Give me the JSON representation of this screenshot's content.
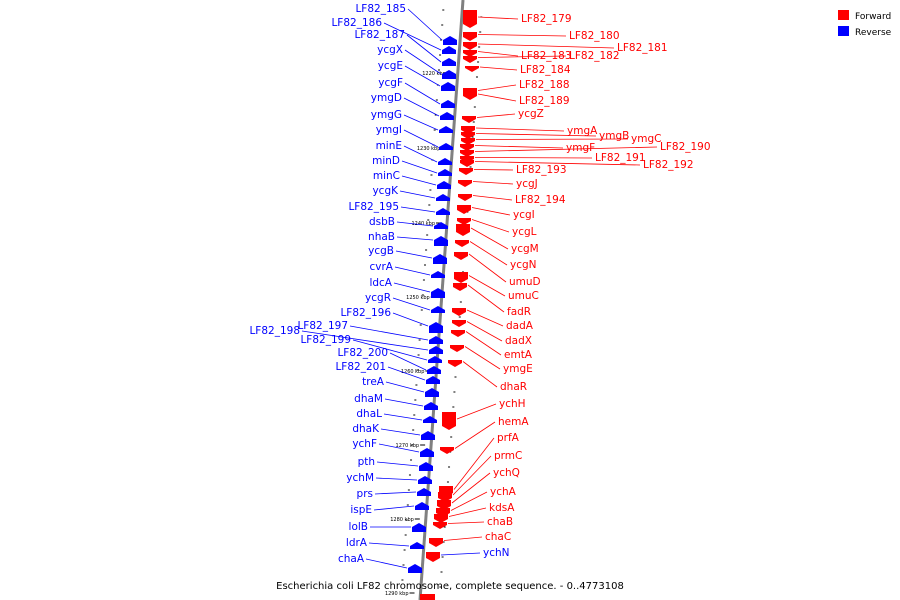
{
  "caption": "Escherichia coli LF82 chromosome, complete sequence. - 0..4773108",
  "legend": [
    {
      "label": "Forward",
      "color": "#ff0000"
    },
    {
      "label": "Reverse",
      "color": "#0000ff"
    }
  ],
  "colors": {
    "forward": "#ff0000",
    "reverse": "#0000ff",
    "axis": "#808080"
  },
  "ticks": [
    "1220 kbp",
    "1230 kbp",
    "1240 kbp",
    "1250 kbp",
    "1260 kbp",
    "1270 kbp",
    "1280 kbp",
    "1290 kbp"
  ],
  "reverse_genes": [
    "LF82_185",
    "LF82_186",
    "LF82_187",
    "ycgX",
    "ycgE",
    "ycgF",
    "ymgD",
    "ymgG",
    "ymgI",
    "minE",
    "minD",
    "minC",
    "ycgK",
    "LF82_195",
    "dsbB",
    "nhaB",
    "ycgB",
    "cvrA",
    "ldcA",
    "ycgR",
    "LF82_196",
    "LF82_197",
    "LF82_198",
    "LF82_199",
    "LF82_200",
    "LF82_201",
    "treA",
    "dhaM",
    "dhaL",
    "dhaK",
    "ychF",
    "pth",
    "ychM",
    "prs",
    "ispE",
    "lolB",
    "ldrA",
    "chaA"
  ],
  "forward_genes": [
    "LF82_179",
    "LF82_180",
    "LF82_181",
    "LF82_183",
    "LF82_182",
    "LF82_184",
    "LF82_188",
    "LF82_189",
    "ycgZ",
    "ymgA",
    "ymgB",
    "ymgC",
    "ymgF",
    "LF82_190",
    "LF82_191",
    "LF82_192",
    "LF82_193",
    "ycgJ",
    "LF82_194",
    "ycgI",
    "ycgL",
    "ycgM",
    "ycgN",
    "umuD",
    "umuC",
    "fadR",
    "dadA",
    "dadX",
    "emtA",
    "ymgE",
    "dhaR",
    "ychH",
    "hemA",
    "prfA",
    "prmC",
    "ychQ",
    "ychA",
    "kdsA",
    "chaB",
    "chaC",
    "ychN"
  ]
}
